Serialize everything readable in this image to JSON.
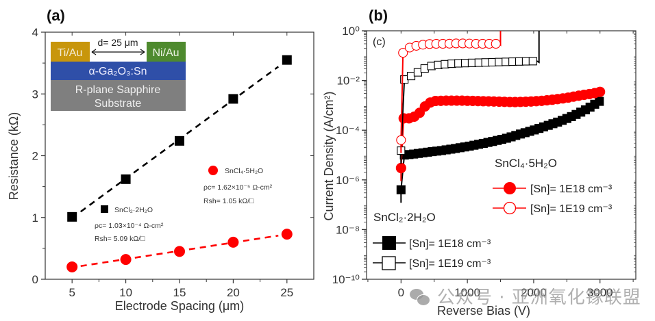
{
  "chart_data": [
    {
      "id": "a",
      "type": "scatter",
      "panel_label": "(a)",
      "title": "",
      "xlabel": "Electrode Spacing (μm)",
      "ylabel": "Resistance (kΩ)",
      "xlim": [
        2.5,
        27.5
      ],
      "ylim": [
        0,
        4
      ],
      "xticks": [
        5,
        10,
        15,
        20,
        25
      ],
      "yticks": [
        0,
        1,
        2,
        3,
        4
      ],
      "grid": false,
      "x": [
        5,
        10,
        15,
        20,
        25
      ],
      "series": [
        {
          "name": "SnCl2·2H2O",
          "marker": "square-filled",
          "color": "#000000",
          "fit": "dashed",
          "values": [
            1.01,
            1.62,
            2.24,
            2.92,
            3.55
          ],
          "annotation": {
            "label": "SnCl₂·2H₂O",
            "rho_c": "ρc= 1.03×10⁻⁴ Ω-cm²",
            "r_sh": "Rsh= 5.09 kΩ/□"
          }
        },
        {
          "name": "SnCl4·5H2O",
          "marker": "circle-filled",
          "color": "#ff0000",
          "fit": "dashed",
          "values": [
            0.2,
            0.32,
            0.45,
            0.6,
            0.73
          ],
          "annotation": {
            "label": "SnCl₄·5H₂O",
            "rho_c": "ρc= 1.62×10⁻⁵ Ω-cm²",
            "r_sh": "Rsh= 1.05 kΩ/□"
          }
        }
      ],
      "inset": {
        "left_contact": "Ti/Au",
        "right_contact": "Ni/Au",
        "spacing": "d= 25 μm",
        "layer": "α-Ga₂O₃:Sn",
        "substrate_line1": "R-plane Sapphire",
        "substrate_line2": "Substrate",
        "colors": {
          "ti_au": "#c8960c",
          "ni_au": "#4e8a2e",
          "ga2o3": "#2f4fa8",
          "substrate": "#7f7f7f"
        }
      }
    },
    {
      "id": "b",
      "type": "line",
      "panel_label": "(b)",
      "inner_label": "(c)",
      "title": "",
      "xlabel": "Reverse Bias (V)",
      "ylabel": "Current Density (A/cm²)",
      "yscale": "log",
      "xlim": [
        -520,
        3540
      ],
      "ylim": [
        1e-10,
        1
      ],
      "xticks": [
        0,
        1000,
        2000,
        3000
      ],
      "yticks": [
        "10⁰",
        "10⁻²",
        "10⁻⁴",
        "10⁻⁶",
        "10⁻⁸",
        "10⁻¹⁰"
      ],
      "ytick_values": [
        1,
        0.01,
        0.0001,
        1e-06,
        1e-08,
        1e-10
      ],
      "grid": false,
      "series": [
        {
          "name": "SnCl4·5H2O [Sn]= 1E19 cm-3",
          "marker": "circle-open",
          "color": "#ff0000",
          "breakdown_V": 1500,
          "points": [
            [
              0,
              4e-05
            ],
            [
              30,
              0.13
            ],
            [
              100,
              0.2
            ],
            [
              200,
              0.24
            ],
            [
              300,
              0.27
            ],
            [
              400,
              0.29
            ],
            [
              500,
              0.3
            ],
            [
              600,
              0.3
            ],
            [
              700,
              0.3
            ],
            [
              800,
              0.31
            ],
            [
              900,
              0.31
            ],
            [
              1000,
              0.31
            ],
            [
              1100,
              0.3
            ],
            [
              1200,
              0.3
            ],
            [
              1300,
              0.3
            ],
            [
              1400,
              0.3
            ],
            [
              1480,
              0.3
            ]
          ]
        },
        {
          "name": "SnCl2·2H2O [Sn]= 1E19 cm-3",
          "marker": "square-open",
          "color": "#000000",
          "breakdown_V": 2080,
          "points": [
            [
              0,
              1.5e-05
            ],
            [
              50,
              0.011
            ],
            [
              150,
              0.015
            ],
            [
              250,
              0.021
            ],
            [
              350,
              0.03
            ],
            [
              450,
              0.038
            ],
            [
              550,
              0.042
            ],
            [
              650,
              0.045
            ],
            [
              750,
              0.047
            ],
            [
              850,
              0.049
            ],
            [
              950,
              0.05
            ],
            [
              1050,
              0.051
            ],
            [
              1150,
              0.052
            ],
            [
              1250,
              0.053
            ],
            [
              1350,
              0.054
            ],
            [
              1450,
              0.055
            ],
            [
              1550,
              0.056
            ],
            [
              1650,
              0.057
            ],
            [
              1750,
              0.058
            ],
            [
              1850,
              0.059
            ],
            [
              1950,
              0.06
            ],
            [
              2050,
              0.06
            ]
          ]
        },
        {
          "name": "SnCl4·5H2O [Sn]= 1E18 cm-3",
          "marker": "circle-filled",
          "color": "#ff0000",
          "points": [
            [
              0,
              3e-06
            ],
            [
              40,
              0.0003
            ],
            [
              120,
              0.0003
            ],
            [
              200,
              0.00035
            ],
            [
              280,
              0.0005
            ],
            [
              360,
              0.0009
            ],
            [
              440,
              0.0013
            ],
            [
              520,
              0.0015
            ],
            [
              700,
              0.00155
            ],
            [
              900,
              0.00155
            ],
            [
              1100,
              0.0015
            ],
            [
              1300,
              0.00145
            ],
            [
              1500,
              0.0014
            ],
            [
              1700,
              0.00135
            ],
            [
              1900,
              0.0014
            ],
            [
              2100,
              0.0015
            ],
            [
              2300,
              0.0017
            ],
            [
              2500,
              0.002
            ],
            [
              2700,
              0.0025
            ],
            [
              2900,
              0.003
            ],
            [
              3000,
              0.0035
            ]
          ]
        },
        {
          "name": "SnCl2·2H2O [Sn]= 1E18 cm-3",
          "marker": "square-filled",
          "color": "#000000",
          "points": [
            [
              0,
              4e-07
            ],
            [
              50,
              1e-05
            ],
            [
              200,
              1.1e-05
            ],
            [
              400,
              1.3e-05
            ],
            [
              600,
              1.5e-05
            ],
            [
              800,
              1.8e-05
            ],
            [
              1000,
              2.2e-05
            ],
            [
              1200,
              2.8e-05
            ],
            [
              1400,
              3.6e-05
            ],
            [
              1600,
              4.8e-05
            ],
            [
              1800,
              7e-05
            ],
            [
              2000,
              0.0001
            ],
            [
              2200,
              0.00015
            ],
            [
              2400,
              0.00023
            ],
            [
              2600,
              0.00038
            ],
            [
              2800,
              0.0007
            ],
            [
              3000,
              0.0015
            ]
          ]
        }
      ],
      "legend": {
        "group1_title": "SnCl₄·5H₂O",
        "group1_items": [
          "[Sn]= 1E18 cm⁻³",
          "[Sn]= 1E19 cm⁻³"
        ],
        "group2_title": "SnCl₂·2H₂O",
        "group2_items": [
          "[Sn]= 1E18 cm⁻³",
          "[Sn]= 1E19 cm⁻³"
        ],
        "placement": "bottom"
      }
    }
  ],
  "watermark": "公众号 · 亚洲氧化镓联盟"
}
